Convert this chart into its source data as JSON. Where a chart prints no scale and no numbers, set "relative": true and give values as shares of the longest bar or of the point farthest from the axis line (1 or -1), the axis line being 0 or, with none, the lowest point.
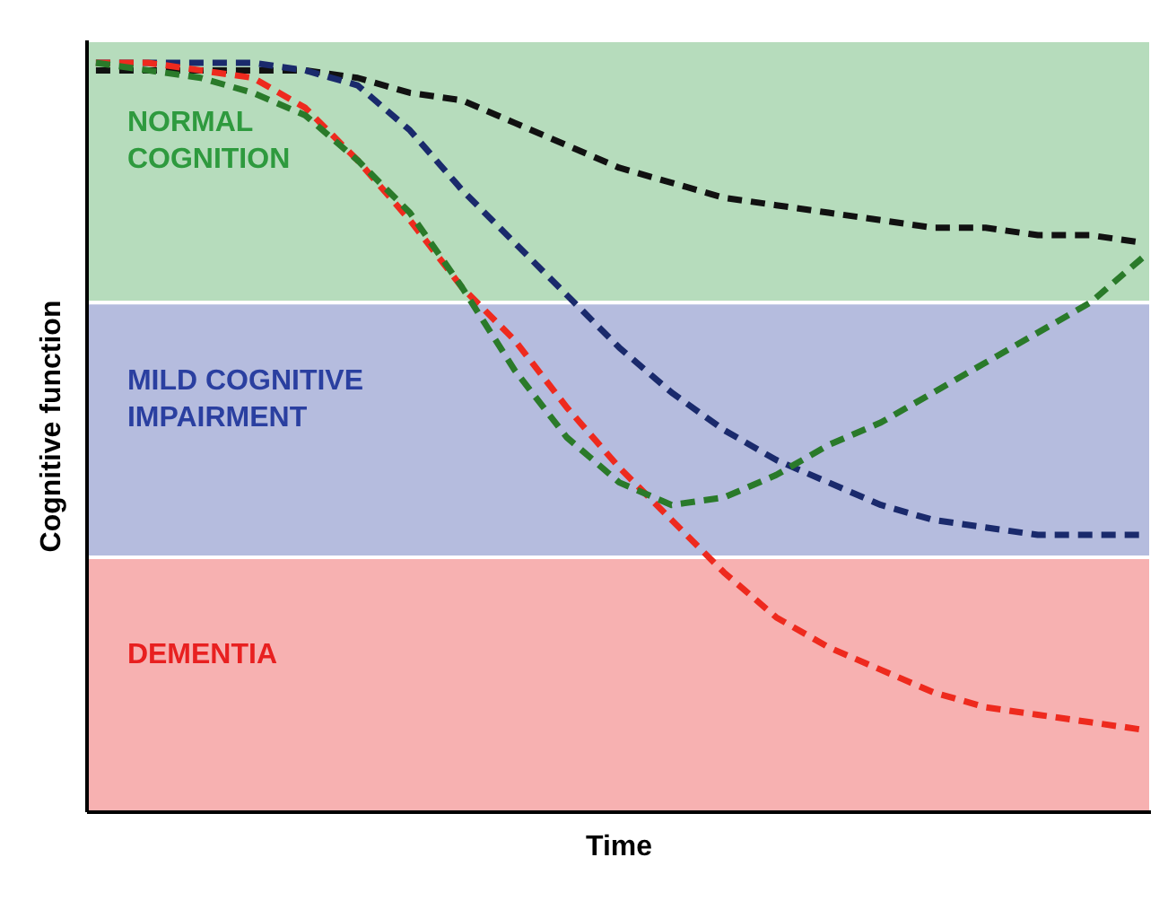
{
  "chart_data": {
    "type": "line",
    "relative": true,
    "xlabel": "Time",
    "ylabel": "Cognitive function",
    "tick_labels": false,
    "grid": false,
    "marker": "none",
    "line_style": "dashed",
    "categories": [
      null,
      null,
      null,
      null,
      null,
      null,
      null,
      null,
      null,
      null,
      null,
      null,
      null,
      null,
      null,
      null,
      null,
      null,
      null,
      null,
      null
    ],
    "series": [
      {
        "color": "#111111",
        "values": [
          0.99,
          0.99,
          0.99,
          0.99,
          0.99,
          0.98,
          0.96,
          0.95,
          0.92,
          0.89,
          0.86,
          0.84,
          0.82,
          0.81,
          0.8,
          0.79,
          0.78,
          0.78,
          0.77,
          0.77,
          0.76
        ]
      },
      {
        "color": "#1a2a6c",
        "values": [
          1.0,
          1.0,
          1.0,
          1.0,
          0.99,
          0.97,
          0.91,
          0.83,
          0.76,
          0.69,
          0.62,
          0.56,
          0.51,
          0.47,
          0.44,
          0.41,
          0.39,
          0.38,
          0.37,
          0.37,
          0.37
        ]
      },
      {
        "color": "#ee2a1e",
        "values": [
          1.0,
          1.0,
          0.99,
          0.98,
          0.94,
          0.87,
          0.79,
          0.7,
          0.63,
          0.54,
          0.46,
          0.39,
          0.32,
          0.26,
          0.22,
          0.19,
          0.16,
          0.14,
          0.13,
          0.12,
          0.11
        ]
      },
      {
        "color": "#2a7a2a",
        "line_style": "dashed",
        "values": [
          1.0,
          0.99,
          0.98,
          0.96,
          0.93,
          0.87,
          0.8,
          0.7,
          0.59,
          0.5,
          0.44,
          0.41,
          0.42,
          0.45,
          0.49,
          0.52,
          0.56,
          0.6,
          0.64,
          0.68,
          0.74
        ]
      }
    ],
    "bands": [
      {
        "axis": "y",
        "from": 0.68,
        "to": 1.03,
        "label": "NORMAL\nCOGNITION",
        "color": "#2e9a3e"
      },
      {
        "axis": "y",
        "from": 0.34,
        "to": 0.68,
        "label": "MILD COGNITIVE\nIMPAIRMENT",
        "color": "#2a3fa0"
      },
      {
        "axis": "y",
        "from": 0.0,
        "to": 0.34,
        "label": "DEMENTIA",
        "color": "#e82020"
      }
    ]
  }
}
